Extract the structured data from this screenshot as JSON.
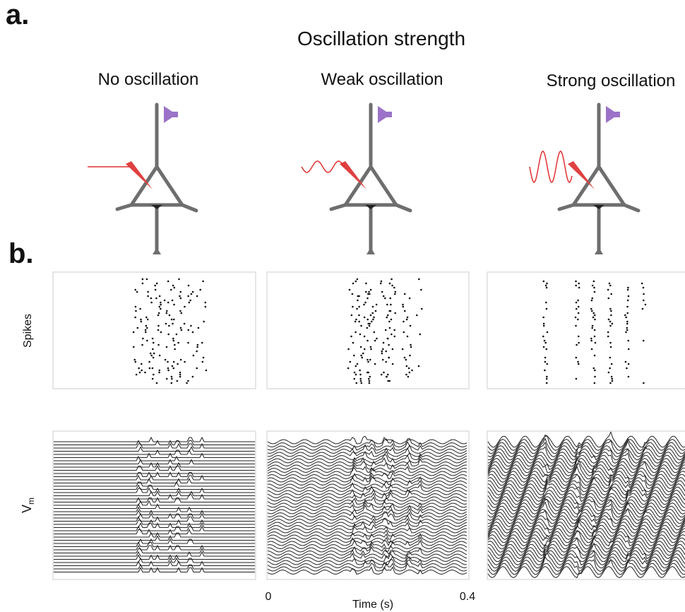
{
  "panel_a": {
    "label": "a.",
    "title": "Oscillation strength",
    "conditions": [
      "No oscillation",
      "Weak oscillation",
      "Strong oscillation"
    ]
  },
  "panel_b": {
    "label": "b.",
    "spikes_label": "Spikes",
    "vm_label": {
      "main": "V",
      "subscript": "m"
    },
    "time_axis": {
      "start": "0",
      "end": "0.4",
      "label": "Time (s)"
    }
  }
}
